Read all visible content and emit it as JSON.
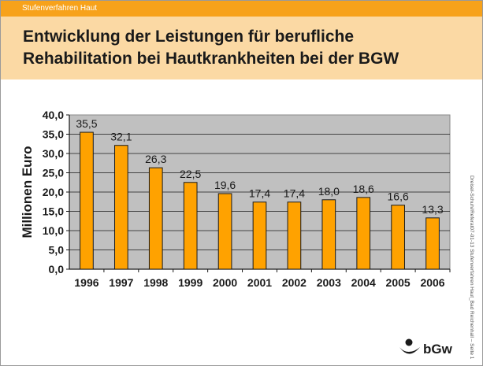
{
  "header": {
    "section_label": "Stufenverfahren Haut",
    "title_line1": "Entwicklung der Leistungen für berufliche",
    "title_line2": "Rehabilitation bei Hautkrankheiten bei der BGW"
  },
  "footer": {
    "side_note": "Dreisel-Schuhi/Referat07-01-13 Stufenverfahren Haut_Bad Reichenhall – Seite 1",
    "logo_text": "bGw"
  },
  "colors": {
    "accent": "#f7a21b",
    "title_band": "#fbd9a4",
    "bar_fill": "#ffa200",
    "plot_bg": "#c0c0c0"
  },
  "chart_data": {
    "type": "bar",
    "title": "",
    "xlabel": "",
    "ylabel": "Millionen Euro",
    "categories": [
      "1996",
      "1997",
      "1998",
      "1999",
      "2000",
      "2001",
      "2002",
      "2003",
      "2004",
      "2005",
      "2006"
    ],
    "values": [
      35.5,
      32.1,
      26.3,
      22.5,
      19.6,
      17.4,
      17.4,
      18.0,
      18.6,
      16.6,
      13.3
    ],
    "value_labels": [
      "35,5",
      "32,1",
      "26,3",
      "22,5",
      "19,6",
      "17,4",
      "17,4",
      "18,0",
      "18,6",
      "16,6",
      "13,3"
    ],
    "ylim": [
      0,
      40
    ],
    "yticks": [
      "0,0",
      "5,0",
      "10,0",
      "15,0",
      "20,0",
      "25,0",
      "30,0",
      "35,0",
      "40,0"
    ],
    "grid": true,
    "legend": "none"
  }
}
